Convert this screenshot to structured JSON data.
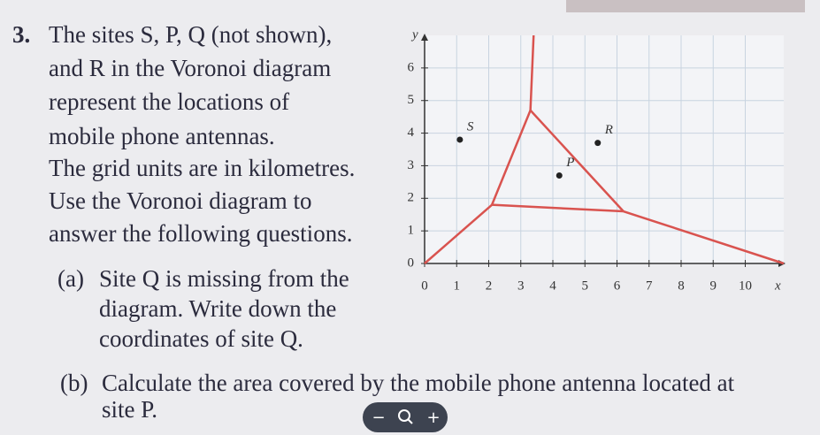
{
  "question": {
    "number": "3.",
    "lines": [
      "The sites S, P, Q (not shown),",
      "and R in the Voronoi diagram",
      "represent the locations of",
      "mobile phone antennas.",
      "The grid units are in kilometres.",
      "Use the Voronoi diagram to",
      "answer the following questions."
    ]
  },
  "parts": [
    {
      "label": "(a)",
      "lines": [
        "Site Q is missing from the",
        "diagram. Write down the",
        "coordinates of site Q."
      ]
    },
    {
      "label": "(b)",
      "lines": [
        "Calculate the area covered by the mobile phone antenna located at",
        "site P."
      ]
    }
  ],
  "graph": {
    "x_label": "x",
    "y_label": "y",
    "xlim": [
      0,
      11.2
    ],
    "ylim": [
      0,
      7
    ],
    "xticks": [
      0,
      1,
      2,
      3,
      4,
      5,
      6,
      7,
      8,
      9,
      10
    ],
    "yticks": [
      0,
      1,
      2,
      3,
      4,
      5,
      6
    ],
    "grid": true,
    "sites": [
      {
        "name": "S",
        "x": 1.1,
        "y": 3.8
      },
      {
        "name": "P",
        "x": 4.2,
        "y": 2.7
      },
      {
        "name": "R",
        "x": 5.4,
        "y": 3.7
      }
    ],
    "edges": [
      {
        "x": [
          0,
          2.1
        ],
        "y": [
          0,
          1.8
        ]
      },
      {
        "x": [
          2.1,
          3.3
        ],
        "y": [
          1.8,
          4.7
        ]
      },
      {
        "x": [
          3.3,
          6.2
        ],
        "y": [
          4.7,
          1.6
        ]
      },
      {
        "x": [
          2.1,
          6.2
        ],
        "y": [
          1.8,
          1.6
        ]
      },
      {
        "x": [
          3.3,
          3.4
        ],
        "y": [
          4.7,
          7
        ]
      },
      {
        "x": [
          6.2,
          11.2
        ],
        "y": [
          1.6,
          0
        ]
      }
    ],
    "edge_color": "#d9534f"
  },
  "zoom_controls": {
    "minus": "−",
    "plus": "+"
  }
}
